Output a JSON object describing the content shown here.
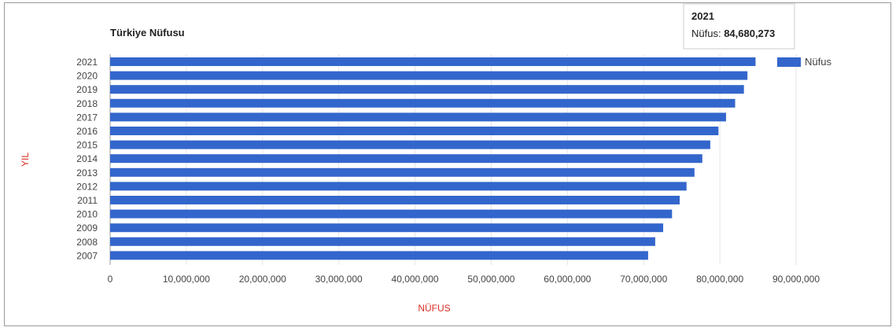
{
  "chart_data": {
    "type": "bar",
    "orientation": "horizontal",
    "title": "Türkiye Nüfusu",
    "xlabel": "NÜFUS",
    "ylabel": "YIL",
    "categories": [
      "2021",
      "2020",
      "2019",
      "2018",
      "2017",
      "2016",
      "2015",
      "2014",
      "2013",
      "2012",
      "2011",
      "2010",
      "2009",
      "2008",
      "2007"
    ],
    "series": [
      {
        "name": "Nüfus",
        "color": "#3366cc",
        "values": [
          84680273,
          83614362,
          83154997,
          82003882,
          80810525,
          79814871,
          78741053,
          77695904,
          76667864,
          75627384,
          74724269,
          73722988,
          72561312,
          71517100,
          70586256
        ]
      }
    ],
    "xlim": [
      0,
      90000000
    ],
    "xticks": [
      "0",
      "10,000,000",
      "20,000,000",
      "30,000,000",
      "40,000,000",
      "50,000,000",
      "60,000,000",
      "70,000,000",
      "80,000,000",
      "90,000,000"
    ],
    "grid": true,
    "legend": "right",
    "tooltip": {
      "title": "2021",
      "label": "Nüfus: ",
      "value": "84,680,273"
    }
  }
}
